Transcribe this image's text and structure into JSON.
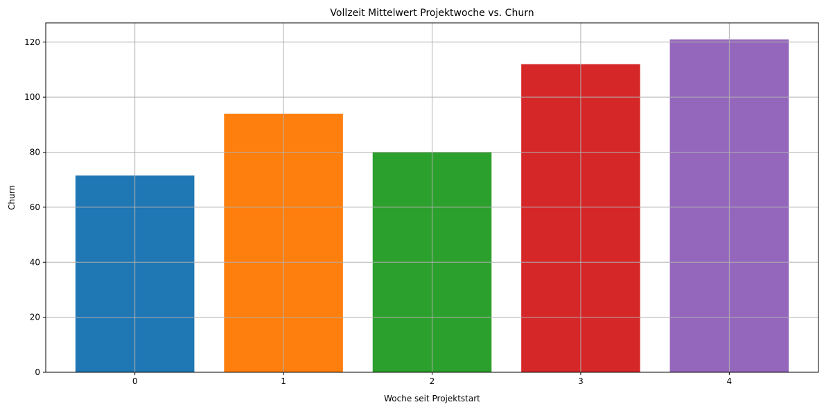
{
  "chart_data": {
    "type": "bar",
    "title": "Vollzeit Mittelwert Projektwoche vs. Churn",
    "xlabel": "Woche seit Projektstart",
    "ylabel": "Churn",
    "categories": [
      "0",
      "1",
      "2",
      "3",
      "4"
    ],
    "values": [
      71.5,
      94,
      80,
      112,
      121
    ],
    "colors": [
      "#1f77b4",
      "#ff7f0e",
      "#2ca02c",
      "#d62728",
      "#9467bd"
    ],
    "ylim": [
      0,
      127
    ],
    "yticks": [
      0,
      20,
      40,
      60,
      80,
      100,
      120
    ],
    "yticklabels": [
      "0",
      "20",
      "40",
      "60",
      "80",
      "100",
      "120"
    ],
    "grid": true,
    "grid_color": "#b0b0b0"
  }
}
